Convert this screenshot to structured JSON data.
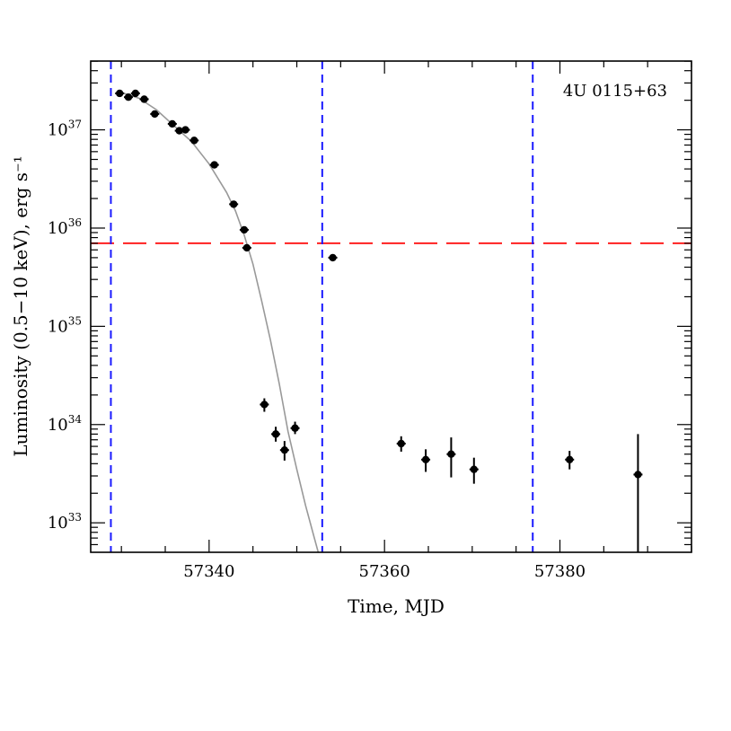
{
  "chart_data": {
    "type": "scatter",
    "title": "",
    "annotation": "4U 0115+63",
    "xlabel": "Time, MJD",
    "ylabel": "Luminosity (0.5−10 keV), erg s⁻¹",
    "xlim": [
      57326.5,
      57395
    ],
    "ylim_log10": [
      32.7,
      37.7
    ],
    "yscale": "log",
    "x_ticks": [
      57340,
      57360,
      57380
    ],
    "y_ticks": [
      {
        "exp": "33",
        "value": 1e+33
      },
      {
        "exp": "34",
        "value": 1e+34
      },
      {
        "exp": "35",
        "value": 1e+35
      },
      {
        "exp": "36",
        "value": 1e+36
      },
      {
        "exp": "37",
        "value": 1e+37
      }
    ],
    "y_tick_base": "10",
    "series": [
      {
        "type": "errorbar",
        "color": "#000000",
        "points": [
          {
            "x": 57329.8,
            "y": 2.35e+37,
            "ylo": 2.25e+37,
            "yhi": 2.45e+37
          },
          {
            "x": 57330.8,
            "y": 2.15e+37,
            "ylo": 2.05e+37,
            "yhi": 2.25e+37
          },
          {
            "x": 57331.6,
            "y": 2.35e+37,
            "ylo": 2.25e+37,
            "yhi": 2.45e+37
          },
          {
            "x": 57332.6,
            "y": 2.05e+37,
            "ylo": 1.95e+37,
            "yhi": 2.15e+37
          },
          {
            "x": 57333.8,
            "y": 1.45e+37,
            "ylo": 1.38e+37,
            "yhi": 1.52e+37
          },
          {
            "x": 57335.8,
            "y": 1.15e+37,
            "ylo": 1.09e+37,
            "yhi": 1.21e+37
          },
          {
            "x": 57336.6,
            "y": 9.8e+36,
            "ylo": 9.3e+36,
            "yhi": 1.03e+37
          },
          {
            "x": 57337.3,
            "y": 1e+37,
            "ylo": 9.5e+36,
            "yhi": 1.05e+37
          },
          {
            "x": 57338.3,
            "y": 7.8e+36,
            "ylo": 7.4e+36,
            "yhi": 8.2e+36
          },
          {
            "x": 57340.6,
            "y": 4.4e+36,
            "ylo": 4.2e+36,
            "yhi": 4.6e+36
          },
          {
            "x": 57342.8,
            "y": 1.75e+36,
            "ylo": 1.67e+36,
            "yhi": 1.83e+36
          },
          {
            "x": 57344.0,
            "y": 9.6e+35,
            "ylo": 9.1e+35,
            "yhi": 1.01e+36
          },
          {
            "x": 57344.3,
            "y": 6.3e+35,
            "ylo": 6e+35,
            "yhi": 6.6e+35
          },
          {
            "x": 57346.3,
            "y": 1.6e+34,
            "ylo": 1.35e+34,
            "yhi": 1.85e+34
          },
          {
            "x": 57347.6,
            "y": 8e+33,
            "ylo": 6.7e+33,
            "yhi": 9.5e+33
          },
          {
            "x": 57348.6,
            "y": 5.5e+33,
            "ylo": 4.3e+33,
            "yhi": 6.8e+33
          },
          {
            "x": 57349.8,
            "y": 9.2e+33,
            "ylo": 8e+33,
            "yhi": 1.07e+34
          },
          {
            "x": 57354.1,
            "y": 5e+35,
            "ylo": 4.8e+35,
            "yhi": 5.2e+35
          },
          {
            "x": 57361.9,
            "y": 6.4e+33,
            "ylo": 5.3e+33,
            "yhi": 7.6e+33
          },
          {
            "x": 57364.7,
            "y": 4.4e+33,
            "ylo": 3.3e+33,
            "yhi": 5.6e+33
          },
          {
            "x": 57367.6,
            "y": 5e+33,
            "ylo": 2.9e+33,
            "yhi": 7.4e+33
          },
          {
            "x": 57370.2,
            "y": 3.5e+33,
            "ylo": 2.5e+33,
            "yhi": 4.6e+33
          },
          {
            "x": 57381.1,
            "y": 4.4e+33,
            "ylo": 3.5e+33,
            "yhi": 5.4e+33
          },
          {
            "x": 57388.9,
            "y": 3.1e+33,
            "ylo": 4e+32,
            "yhi": 8e+33
          }
        ]
      },
      {
        "type": "model-curve",
        "color": "#999999",
        "points": [
          [
            57330,
            2.4e+37
          ],
          [
            57332,
            2.1e+37
          ],
          [
            57334,
            1.6e+37
          ],
          [
            57336,
            1.1e+37
          ],
          [
            57338,
            7.6e+36
          ],
          [
            57340,
            4.5e+36
          ],
          [
            57342,
            2.3e+36
          ],
          [
            57343,
            1.5e+36
          ],
          [
            57344,
            8.5e+35
          ],
          [
            57345,
            4.3e+35
          ],
          [
            57346,
            1.8e+35
          ],
          [
            57347,
            7.2e+34
          ],
          [
            57348,
            2.6e+34
          ],
          [
            57349,
            8.5e+33
          ],
          [
            57350,
            3.5e+33
          ],
          [
            57351,
            1.5e+33
          ],
          [
            57352,
            7e+32
          ],
          [
            57353,
            3.3e+32
          ],
          [
            57354,
            1.5e+32
          ]
        ]
      }
    ],
    "reference_lines": [
      {
        "orientation": "horizontal",
        "value": 7e+35,
        "color": "#ff2020",
        "style": "long-dash"
      },
      {
        "orientation": "vertical",
        "value": 57328.8,
        "color": "#1a1aff",
        "style": "dash"
      },
      {
        "orientation": "vertical",
        "value": 57352.9,
        "color": "#1a1aff",
        "style": "dash"
      },
      {
        "orientation": "vertical",
        "value": 57376.9,
        "color": "#1a1aff",
        "style": "dash"
      }
    ]
  }
}
